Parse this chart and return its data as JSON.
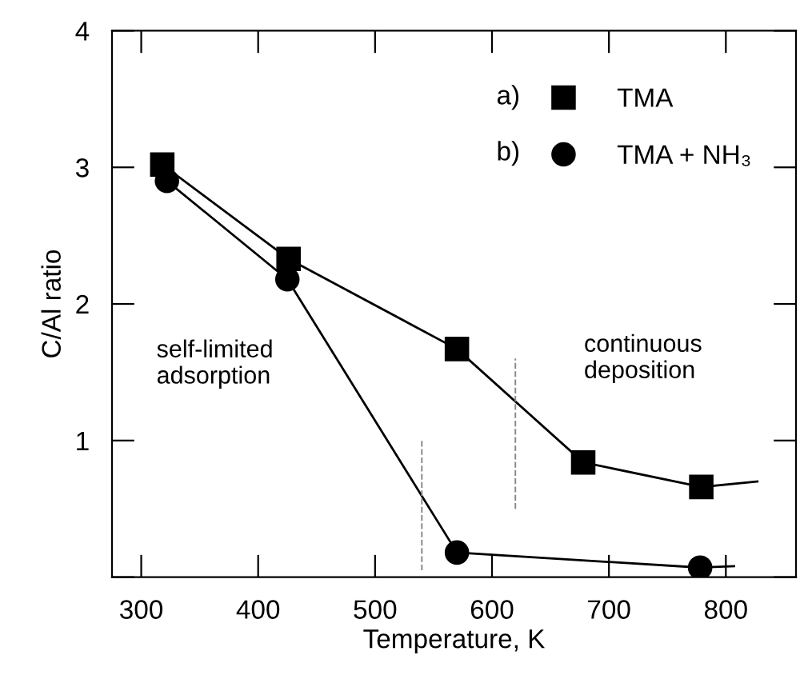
{
  "chart_data": {
    "type": "line",
    "xlabel": "Temperature, K",
    "ylabel": "C/Al ratio",
    "xlim": [
      275,
      860
    ],
    "xticks": [
      300,
      400,
      500,
      600,
      700,
      800
    ],
    "ylim": [
      0,
      4
    ],
    "yticks": [
      {
        "value": 0,
        "label": null
      },
      1,
      2,
      3,
      4
    ],
    "grid": false,
    "legend": "top right",
    "line_style": "solid",
    "annotations": [
      "a)",
      "b)",
      "self-limited\nadsorption",
      "continuous\ndeposition"
    ],
    "series": [
      {
        "name": "TMA",
        "color": "#000000",
        "marker": "square",
        "x": [
          318,
          426,
          570,
          678,
          779
        ],
        "values": [
          3.02,
          2.33,
          1.67,
          0.84,
          0.66
        ]
      },
      {
        "name": "TMA + NH₃",
        "color": "#000000",
        "marker": "circle",
        "x": [
          322,
          425,
          570,
          778
        ],
        "values": [
          2.9,
          2.18,
          0.18,
          0.07
        ]
      },
      {
        "color": "#000000",
        "marker": "none",
        "x": [
          779,
          827
        ],
        "values": [
          0.66,
          0.7
        ]
      },
      {
        "color": "#000000",
        "marker": "none",
        "x": [
          778,
          807
        ],
        "values": [
          0.07,
          0.08
        ]
      },
      {
        "color": "#888888",
        "marker": "none",
        "line_style": "dashed",
        "x": [
          540,
          540
        ],
        "values": [
          0.05,
          1.0
        ]
      },
      {
        "color": "#888888",
        "marker": "none",
        "line_style": "dashed",
        "x": [
          620,
          620
        ],
        "values": [
          0.5,
          1.6
        ]
      }
    ]
  }
}
